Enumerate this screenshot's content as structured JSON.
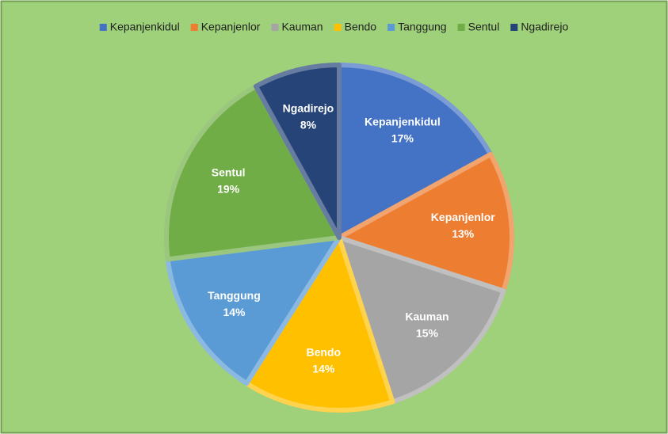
{
  "chart_data": {
    "type": "pie",
    "categories": [
      "Kepanjenkidul",
      "Kepanjenlor",
      "Kauman",
      "Bendo",
      "Tanggung",
      "Sentul",
      "Ngadirejo"
    ],
    "values": [
      17,
      13,
      15,
      14,
      14,
      19,
      8
    ],
    "value_labels": [
      "17%",
      "13%",
      "15%",
      "14%",
      "14%",
      "19%",
      "8%"
    ],
    "colors": [
      "#4472c4",
      "#ed7d31",
      "#a5a5a5",
      "#ffc000",
      "#5b9bd5",
      "#70ad47",
      "#264478"
    ],
    "legend": "top"
  }
}
